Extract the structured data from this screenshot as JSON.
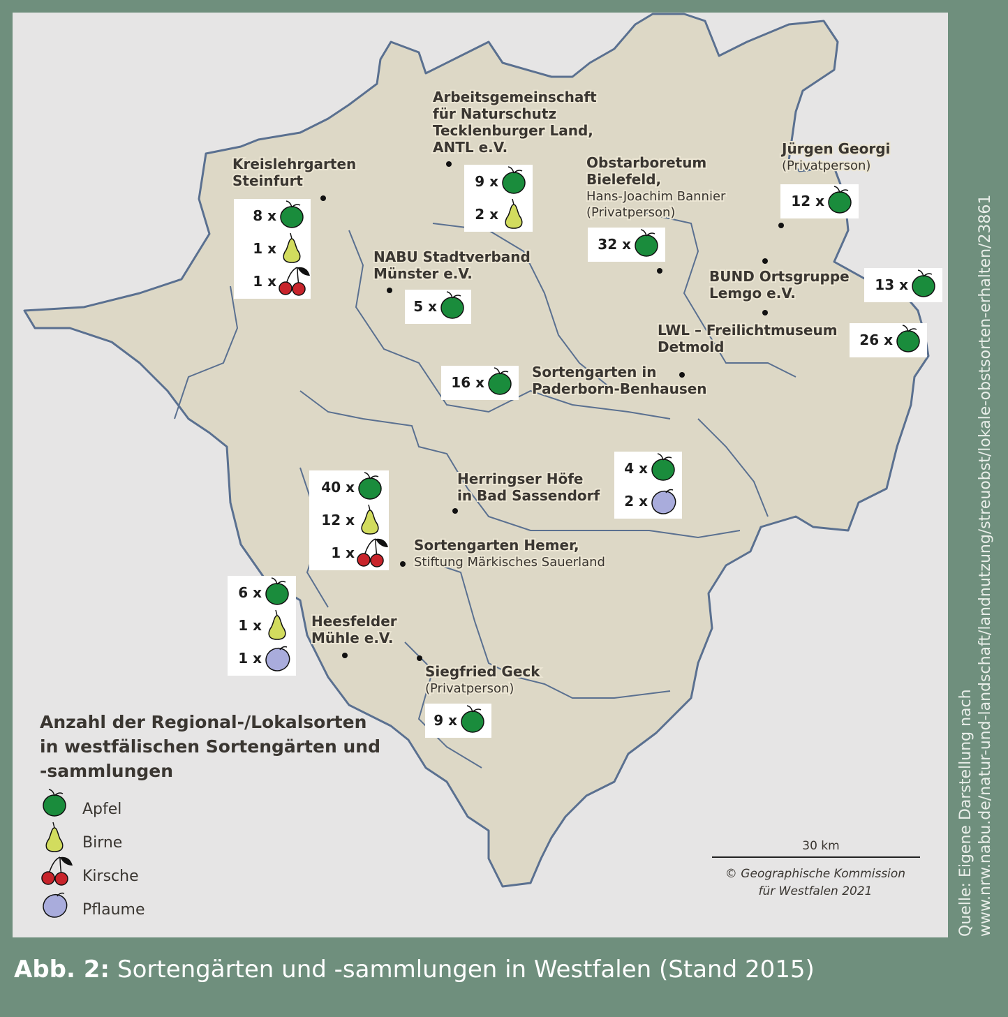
{
  "sites": [
    {
      "name": [
        "Kreislehrgarten",
        "Steinfurt"
      ],
      "counts": [
        {
          "fruit": "Apfel",
          "label": "8 x"
        },
        {
          "fruit": "Birne",
          "label": "1 x"
        },
        {
          "fruit": "Kirsche",
          "label": "1 x"
        }
      ]
    },
    {
      "name": [
        "Arbeitsgemeinschaft",
        "für Naturschutz",
        "Tecklenburger Land,",
        "ANTL e.V."
      ],
      "counts": [
        {
          "fruit": "Apfel",
          "label": "9 x"
        },
        {
          "fruit": "Birne",
          "label": "2 x"
        }
      ]
    },
    {
      "name": [
        "Obstarboretum",
        "Bielefeld,"
      ],
      "subtitle": [
        "Hans-Joachim Bannier",
        "(Privatperson)"
      ],
      "counts": [
        {
          "fruit": "Apfel",
          "label": "32 x"
        }
      ]
    },
    {
      "name": [
        "Jürgen Georgi"
      ],
      "subtitle": [
        "(Privatperson)"
      ],
      "counts": [
        {
          "fruit": "Apfel",
          "label": "12 x"
        }
      ]
    },
    {
      "name": [
        "NABU Stadtverband",
        "Münster e.V."
      ],
      "counts": [
        {
          "fruit": "Apfel",
          "label": "5 x"
        }
      ]
    },
    {
      "name": [
        "BUND Ortsgruppe",
        "Lemgo e.V."
      ],
      "counts": [
        {
          "fruit": "Apfel",
          "label": "13 x"
        }
      ]
    },
    {
      "name": [
        "LWL – Freilichtmuseum",
        "Detmold"
      ],
      "counts": [
        {
          "fruit": "Apfel",
          "label": "26 x"
        }
      ]
    },
    {
      "name": [
        "Sortengarten in",
        "Paderborn-Benhausen"
      ],
      "counts": [
        {
          "fruit": "Apfel",
          "label": "16 x"
        }
      ]
    },
    {
      "name": [
        "Herringser Höfe",
        "in Bad Sassendorf"
      ],
      "counts": [
        {
          "fruit": "Apfel",
          "label": "4 x"
        },
        {
          "fruit": "Pflaume",
          "label": "2 x"
        }
      ]
    },
    {
      "name": [
        "Sortengarten Hemer,"
      ],
      "subtitle": [
        "Stiftung Märkisches Sauerland"
      ],
      "counts": [
        {
          "fruit": "Apfel",
          "label": "40 x"
        },
        {
          "fruit": "Birne",
          "label": "12 x"
        },
        {
          "fruit": "Kirsche",
          "label": "1 x"
        }
      ]
    },
    {
      "name": [
        "Heesfelder",
        "Mühle e.V."
      ],
      "counts": [
        {
          "fruit": "Apfel",
          "label": "6 x"
        },
        {
          "fruit": "Birne",
          "label": "1 x"
        },
        {
          "fruit": "Pflaume",
          "label": "1 x"
        }
      ]
    },
    {
      "name": [
        "Siegfried Geck"
      ],
      "subtitle": [
        "(Privatperson)"
      ],
      "counts": [
        {
          "fruit": "Apfel",
          "label": "9 x"
        }
      ]
    }
  ],
  "legend": {
    "title": [
      "Anzahl der Regional-/Lokalsorten",
      "in westfälischen Sortengärten und",
      "-sammlungen"
    ],
    "items": [
      "Apfel",
      "Birne",
      "Kirsche",
      "Pflaume"
    ]
  },
  "scale": "30 km",
  "copyright": [
    "© Geographische Kommission",
    "für Westfalen 2021"
  ],
  "source": [
    "Quelle: Eigene Darstellung nach",
    "www.nrw.nabu.de/natur-und-landschaft/landnutzung/streuobst/lokale-obstsorten-erhalten/23861"
  ],
  "caption": {
    "label": "Abb. 2:",
    "text": "Sortengärten und -sammlungen in Westfalen (Stand 2015)"
  }
}
